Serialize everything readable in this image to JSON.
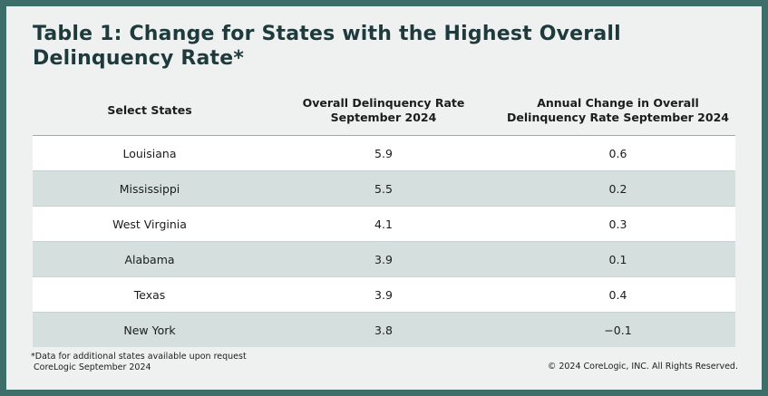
{
  "title": {
    "line1": "Table 1: Change for States with the Highest Overall",
    "line2": "Delinquency Rate*"
  },
  "table": {
    "headers": {
      "state": "Select States",
      "rate_line1": "Overall Delinquency Rate",
      "rate_line2": "September 2024",
      "change_line1": "Annual Change in Overall",
      "change_line2": "Delinquency Rate September 2024"
    },
    "rows": [
      {
        "state": "Louisiana",
        "rate": "5.9",
        "change": "0.6"
      },
      {
        "state": "Mississippi",
        "rate": "5.5",
        "change": "0.2"
      },
      {
        "state": "West Virginia",
        "rate": "4.1",
        "change": "0.3"
      },
      {
        "state": "Alabama",
        "rate": "3.9",
        "change": "0.1"
      },
      {
        "state": "Texas",
        "rate": "3.9",
        "change": "0.4"
      },
      {
        "state": "New York",
        "rate": "3.8",
        "change": "−0.1"
      }
    ]
  },
  "footnote": {
    "note": "*Data for additional states available upon request",
    "source": "CoreLogic September 2024"
  },
  "copyright": "© 2024 CoreLogic, INC. All Rights Reserved.",
  "colors": {
    "frame": "#3e6e6a",
    "card": "#eef1f0",
    "title": "#1f3a3c",
    "row_white": "#ffffff",
    "row_shaded": "#d5dfde"
  }
}
